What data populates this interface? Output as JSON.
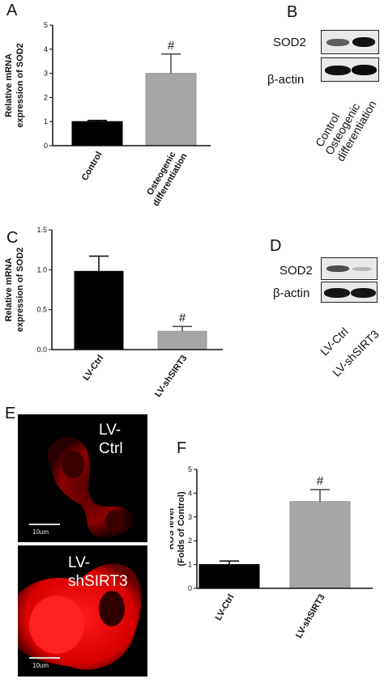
{
  "panels": {
    "a": "A",
    "b": "B",
    "c": "C",
    "d": "D",
    "e": "E",
    "f": "F"
  },
  "blot_b": {
    "rows": [
      "SOD2",
      "β-actin"
    ],
    "lanes": [
      "Control",
      "Osteogenic\ndifferentiation"
    ]
  },
  "blot_d": {
    "rows": [
      "SOD2",
      "β-actin"
    ],
    "lanes": [
      "LV-Ctrl",
      "LV-shSIRT3"
    ]
  },
  "images": {
    "top_label": "LV-\nCtrl",
    "bottom_label": "LV-\nshSIRT3",
    "scale_text": "10um"
  },
  "colors": {
    "ctrl_bar": "#000000",
    "treat_bar": "#a6a6a6",
    "fluorescence": "#e00000"
  },
  "chart_data": [
    {
      "id": "A",
      "type": "bar",
      "categories": [
        "Control",
        "Osteogenic\ndifferentiation"
      ],
      "values": [
        1.0,
        3.0
      ],
      "errors": [
        0.05,
        0.8
      ],
      "annotations": [
        "",
        "#"
      ],
      "ylabel": "Relative mRNA\nexpression of SOD2",
      "ylim": [
        0,
        5
      ],
      "yticks": [
        0,
        1,
        2,
        3,
        4,
        5
      ],
      "ytick_labels": [
        "0",
        "1",
        "2",
        "3",
        "4",
        "5"
      ]
    },
    {
      "id": "C",
      "type": "bar",
      "categories": [
        "LV-Ctrl",
        "LV-shSIRT3"
      ],
      "values": [
        0.98,
        0.23
      ],
      "errors": [
        0.19,
        0.06
      ],
      "annotations": [
        "",
        "#"
      ],
      "ylabel": "Relative mRNA\nexpression of SOD2",
      "ylim": [
        0,
        1.5
      ],
      "yticks": [
        0,
        0.5,
        1.0,
        1.5
      ],
      "ytick_labels": [
        "0.0",
        "0.5",
        "1.0",
        "1.5"
      ]
    },
    {
      "id": "F",
      "type": "bar",
      "categories": [
        "LV-Ctrl",
        "LV-shSIRT3"
      ],
      "values": [
        1.0,
        3.65
      ],
      "errors": [
        0.15,
        0.5
      ],
      "annotations": [
        "",
        "#"
      ],
      "ylabel": "ROS level\n(Folds of Control)",
      "ylim": [
        0,
        5
      ],
      "yticks": [
        0,
        1,
        2,
        3,
        4,
        5
      ],
      "ytick_labels": [
        "0",
        "1",
        "2",
        "3",
        "4",
        "5"
      ]
    }
  ]
}
